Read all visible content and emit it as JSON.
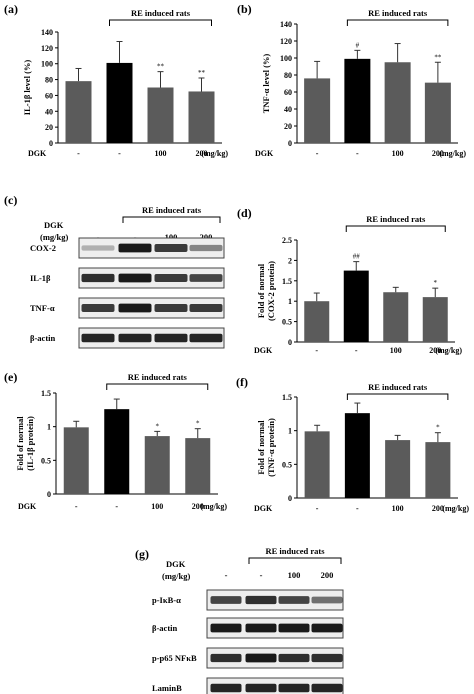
{
  "colors": {
    "gray_bar": "#5b5b5b",
    "black_bar": "#000000",
    "axis": "#000000",
    "blot_dark": "#111111"
  },
  "chart_data": [
    {
      "panel": "(a)",
      "type": "bar",
      "ylabel": "IL-1β level (%)",
      "ylim": [
        0,
        140
      ],
      "yticks": [
        0,
        20,
        40,
        60,
        80,
        100,
        120,
        140
      ],
      "group_label": "RE induced rats",
      "dgk_label": "DGK",
      "categories": [
        "-",
        "-",
        "100",
        "200"
      ],
      "unit": "(mg/kg)",
      "values": [
        78,
        101,
        70,
        65
      ],
      "errors": [
        16,
        27,
        20,
        17
      ],
      "sig": [
        "",
        "",
        "**",
        "**"
      ],
      "colors": [
        "gray",
        "black",
        "gray",
        "gray"
      ]
    },
    {
      "panel": "(b)",
      "type": "bar",
      "ylabel": "TNF-α level (%)",
      "ylim": [
        0,
        140
      ],
      "yticks": [
        0,
        20,
        40,
        60,
        80,
        100,
        120,
        140
      ],
      "group_label": "RE induced rats",
      "dgk_label": "DGK",
      "categories": [
        "-",
        "-",
        "100",
        "200"
      ],
      "unit": "(mg/kg)",
      "values": [
        76,
        99,
        95,
        71
      ],
      "errors": [
        20,
        10,
        22,
        24
      ],
      "sig": [
        "",
        "#",
        "",
        "**"
      ],
      "colors": [
        "gray",
        "black",
        "gray",
        "gray"
      ]
    },
    {
      "panel": "(d)",
      "type": "bar",
      "ylabel": "Fold of normal\n(COX-2 protein)",
      "ylim": [
        0,
        2.5
      ],
      "yticks": [
        0,
        0.5,
        1,
        1.5,
        2,
        2.5
      ],
      "group_label": "RE induced rats",
      "dgk_label": "DGK",
      "categories": [
        "-",
        "-",
        "100",
        "200"
      ],
      "unit": "(mg/kg)",
      "values": [
        1.0,
        1.75,
        1.22,
        1.1
      ],
      "errors": [
        0.2,
        0.22,
        0.12,
        0.22
      ],
      "sig": [
        "",
        "##",
        "",
        "*"
      ],
      "colors": [
        "gray",
        "black",
        "gray",
        "gray"
      ]
    },
    {
      "panel": "(e)",
      "type": "bar",
      "ylabel": "Fold of normal\n(IL-1β protein)",
      "ylim": [
        0,
        1.5
      ],
      "yticks": [
        0,
        0.5,
        1,
        1.5
      ],
      "group_label": "RE induced rats",
      "dgk_label": "DGK",
      "categories": [
        "-",
        "-",
        "100",
        "200"
      ],
      "unit": "(mg/kg)",
      "values": [
        0.99,
        1.26,
        0.86,
        0.83
      ],
      "errors": [
        0.09,
        0.15,
        0.07,
        0.14
      ],
      "sig": [
        "",
        "",
        "*",
        "*"
      ],
      "colors": [
        "gray",
        "black",
        "gray",
        "gray"
      ]
    },
    {
      "panel": "(f)",
      "type": "bar",
      "ylabel": "Fold of normal\n(TNF-α protein)",
      "ylim": [
        0,
        1.5
      ],
      "yticks": [
        0,
        0.5,
        1,
        1.5
      ],
      "group_label": "RE induced rats",
      "dgk_label": "DGK",
      "categories": [
        "-",
        "-",
        "100",
        "200"
      ],
      "unit": "(mg/kg)",
      "values": [
        0.99,
        1.26,
        0.86,
        0.83
      ],
      "errors": [
        0.09,
        0.15,
        0.07,
        0.14
      ],
      "sig": [
        "",
        "",
        "",
        "*"
      ],
      "colors": [
        "gray",
        "black",
        "gray",
        "gray"
      ]
    }
  ],
  "blots": [
    {
      "panel": "(c)",
      "group_label": "RE induced rats",
      "dgk_label": "DGK",
      "dgk_unit": "(mg/kg)",
      "lanes": [
        "-",
        "-",
        "100",
        "200"
      ],
      "rows": [
        {
          "label": "COX-2",
          "intensities": [
            0.25,
            0.95,
            0.8,
            0.45
          ]
        },
        {
          "label": "IL-1β",
          "intensities": [
            0.85,
            0.95,
            0.8,
            0.75
          ]
        },
        {
          "label": "TNF-α",
          "intensities": [
            0.8,
            0.95,
            0.8,
            0.8
          ]
        },
        {
          "label": "β-actin",
          "intensities": [
            0.9,
            0.9,
            0.9,
            0.9
          ]
        }
      ]
    },
    {
      "panel": "(g)",
      "group_label": "RE induced rats",
      "dgk_label": "DGK",
      "dgk_unit": "(mg/kg)",
      "lanes": [
        "-",
        "-",
        "100",
        "200"
      ],
      "rows": [
        {
          "label": "p-IκB-α",
          "intensities": [
            0.75,
            0.85,
            0.75,
            0.55
          ]
        },
        {
          "label": "β-actin",
          "intensities": [
            0.95,
            0.95,
            0.95,
            0.95
          ]
        },
        {
          "label": "p-p65 NFκB",
          "intensities": [
            0.85,
            0.95,
            0.85,
            0.85
          ]
        },
        {
          "label": "LaminB",
          "intensities": [
            0.9,
            0.9,
            0.9,
            0.9
          ]
        }
      ]
    }
  ]
}
